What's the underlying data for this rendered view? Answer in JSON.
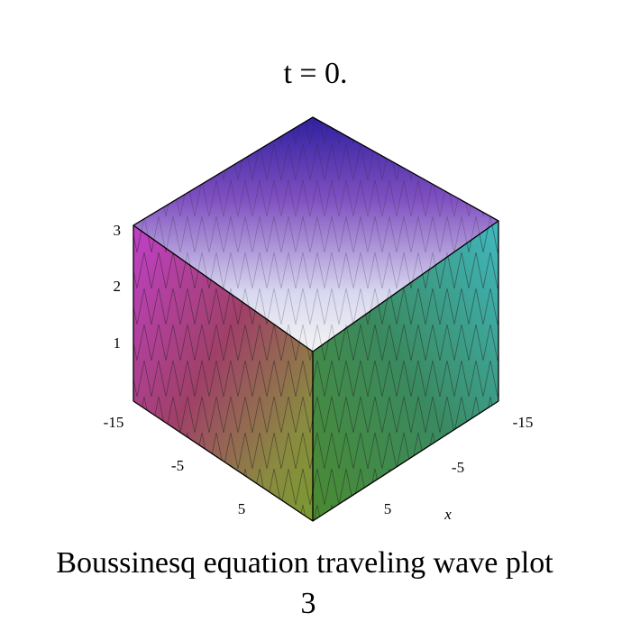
{
  "title": "t = 0.",
  "axes": {
    "z_ticks": [
      "1",
      "2",
      "3"
    ],
    "x_ticks": [
      "-15",
      "-5",
      "5"
    ],
    "y_ticks": [
      "-15",
      "-5",
      "5"
    ],
    "x_label": "x"
  },
  "caption": [
    "Boussinesq equation  traveling wave plot",
    "3"
  ]
}
